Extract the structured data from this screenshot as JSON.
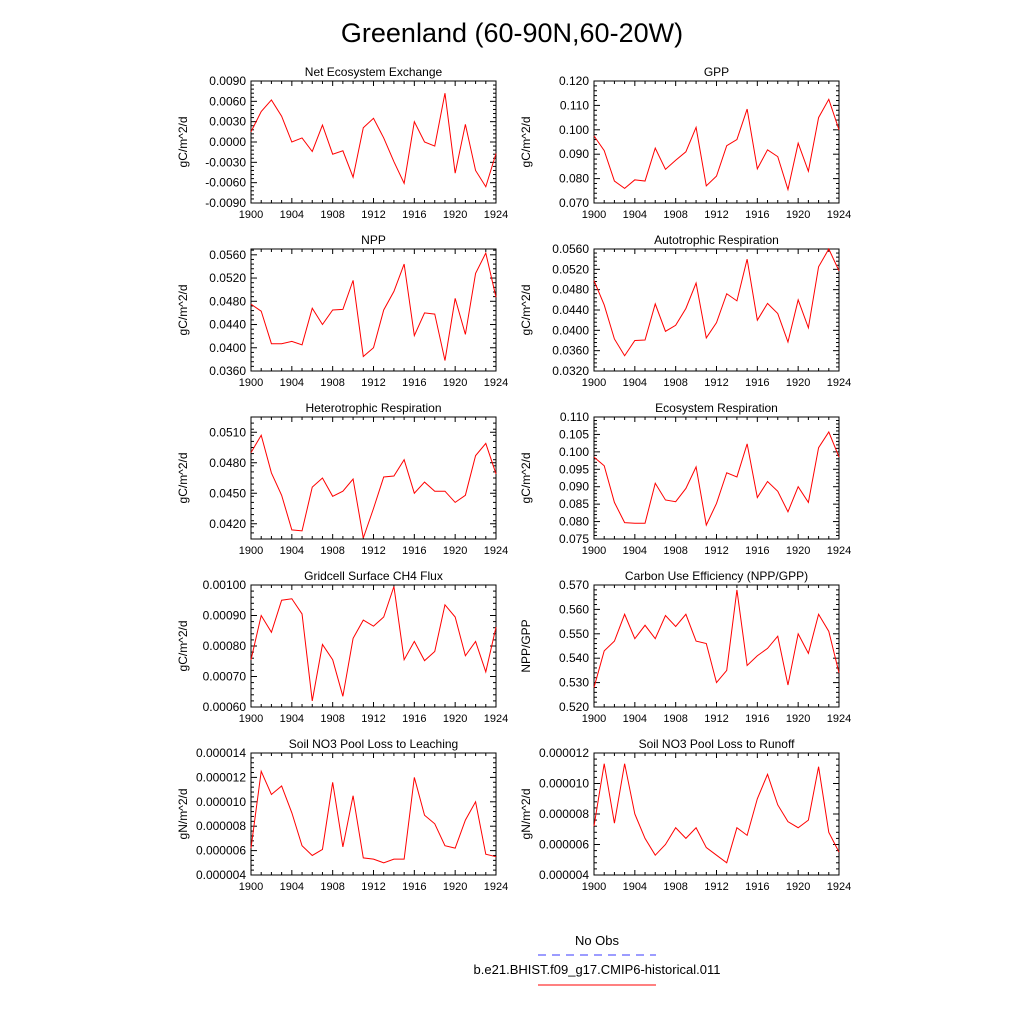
{
  "title": "Greenland (60-90N,60-20W)",
  "legend": {
    "items": [
      {
        "label": "No Obs",
        "color": "#3a3aff",
        "dashed": true
      },
      {
        "label": "b.e21.BHIST.f09_g17.CMIP6-historical.011",
        "color": "#ff0000",
        "dashed": false
      }
    ]
  },
  "line_color": "#ff0000",
  "chart_data": [
    {
      "type": "line",
      "title": "Net Ecosystem Exchange",
      "ylabel": "gC/m^2/d",
      "xlim": [
        1900,
        1924
      ],
      "ylim": [
        -0.009,
        0.009
      ],
      "xticks": [
        1900,
        1904,
        1908,
        1912,
        1916,
        1920,
        1924
      ],
      "xtick_labels": [
        "1900",
        "1904",
        "1908",
        "1912",
        "1916",
        "1920",
        "1924"
      ],
      "yticks": [
        -0.009,
        -0.006,
        -0.003,
        0.0,
        0.003,
        0.006,
        0.009
      ],
      "ytick_labels": [
        "-0.0090",
        "-0.0060",
        "-0.0030",
        "0.0000",
        "0.0030",
        "0.0060",
        "0.0090"
      ],
      "x": [
        1900,
        1901,
        1902,
        1903,
        1904,
        1905,
        1906,
        1907,
        1908,
        1909,
        1910,
        1911,
        1912,
        1913,
        1914,
        1915,
        1916,
        1917,
        1918,
        1919,
        1920,
        1921,
        1922,
        1923,
        1924
      ],
      "y": [
        0.0015,
        0.0045,
        0.0062,
        0.0038,
        0.0,
        0.0006,
        -0.0014,
        0.0025,
        -0.0018,
        -0.0013,
        -0.0052,
        0.0021,
        0.0035,
        0.0006,
        -0.0029,
        -0.0061,
        0.003,
        0.0,
        -0.0006,
        0.0072,
        -0.0046,
        0.0026,
        -0.0042,
        -0.0066,
        -0.0017
      ]
    },
    {
      "type": "line",
      "title": "GPP",
      "ylabel": "gC/m^2/d",
      "xlim": [
        1900,
        1924
      ],
      "ylim": [
        0.07,
        0.12
      ],
      "xticks": [
        1900,
        1904,
        1908,
        1912,
        1916,
        1920,
        1924
      ],
      "xtick_labels": [
        "1900",
        "1904",
        "1908",
        "1912",
        "1916",
        "1920",
        "1924"
      ],
      "yticks": [
        0.07,
        0.08,
        0.09,
        0.1,
        0.11,
        0.12
      ],
      "ytick_labels": [
        "0.070",
        "0.080",
        "0.090",
        "0.100",
        "0.110",
        "0.120"
      ],
      "x": [
        1900,
        1901,
        1902,
        1903,
        1904,
        1905,
        1906,
        1907,
        1908,
        1909,
        1910,
        1911,
        1912,
        1913,
        1914,
        1915,
        1916,
        1917,
        1918,
        1919,
        1920,
        1921,
        1922,
        1923,
        1924
      ],
      "y": [
        0.0975,
        0.0915,
        0.079,
        0.076,
        0.0795,
        0.079,
        0.0925,
        0.0838,
        0.0875,
        0.091,
        0.101,
        0.077,
        0.081,
        0.0935,
        0.096,
        0.1085,
        0.084,
        0.0918,
        0.089,
        0.0755,
        0.0945,
        0.083,
        0.105,
        0.1125,
        0.1
      ]
    },
    {
      "type": "line",
      "title": "NPP",
      "ylabel": "gC/m^2/d",
      "xlim": [
        1900,
        1924
      ],
      "ylim": [
        0.036,
        0.057
      ],
      "xticks": [
        1900,
        1904,
        1908,
        1912,
        1916,
        1920,
        1924
      ],
      "xtick_labels": [
        "1900",
        "1904",
        "1908",
        "1912",
        "1916",
        "1920",
        "1924"
      ],
      "yticks": [
        0.036,
        0.04,
        0.044,
        0.048,
        0.052,
        0.056
      ],
      "ytick_labels": [
        "0.0360",
        "0.0400",
        "0.0440",
        "0.0480",
        "0.0520",
        "0.0560"
      ],
      "x": [
        1900,
        1901,
        1902,
        1903,
        1904,
        1905,
        1906,
        1907,
        1908,
        1909,
        1910,
        1911,
        1912,
        1913,
        1914,
        1915,
        1916,
        1917,
        1918,
        1919,
        1920,
        1921,
        1922,
        1923,
        1924
      ],
      "y": [
        0.0475,
        0.0463,
        0.0407,
        0.0407,
        0.0411,
        0.0405,
        0.0468,
        0.044,
        0.0465,
        0.0466,
        0.0516,
        0.0385,
        0.04,
        0.0465,
        0.0497,
        0.0544,
        0.0421,
        0.046,
        0.0458,
        0.0378,
        0.0485,
        0.0423,
        0.0528,
        0.0563,
        0.0487
      ]
    },
    {
      "type": "line",
      "title": "Autotrophic Respiration",
      "ylabel": "gC/m^2/d",
      "xlim": [
        1900,
        1924
      ],
      "ylim": [
        0.032,
        0.056
      ],
      "xticks": [
        1900,
        1904,
        1908,
        1912,
        1916,
        1920,
        1924
      ],
      "xtick_labels": [
        "1900",
        "1904",
        "1908",
        "1912",
        "1916",
        "1920",
        "1924"
      ],
      "yticks": [
        0.032,
        0.036,
        0.04,
        0.044,
        0.048,
        0.052,
        0.056
      ],
      "ytick_labels": [
        "0.0320",
        "0.0360",
        "0.0400",
        "0.0440",
        "0.0480",
        "0.0520",
        "0.0560"
      ],
      "x": [
        1900,
        1901,
        1902,
        1903,
        1904,
        1905,
        1906,
        1907,
        1908,
        1909,
        1910,
        1911,
        1912,
        1913,
        1914,
        1915,
        1916,
        1917,
        1918,
        1919,
        1920,
        1921,
        1922,
        1923,
        1924
      ],
      "y": [
        0.0498,
        0.045,
        0.0383,
        0.035,
        0.038,
        0.0381,
        0.0452,
        0.0398,
        0.041,
        0.0443,
        0.0493,
        0.0385,
        0.0415,
        0.0472,
        0.0458,
        0.054,
        0.042,
        0.0453,
        0.0433,
        0.0377,
        0.046,
        0.0405,
        0.0525,
        0.056,
        0.0517
      ]
    },
    {
      "type": "line",
      "title": "Heterotrophic Respiration",
      "ylabel": "gC/m^2/d",
      "xlim": [
        1900,
        1924
      ],
      "ylim": [
        0.0405,
        0.0525
      ],
      "xticks": [
        1900,
        1904,
        1908,
        1912,
        1916,
        1920,
        1924
      ],
      "xtick_labels": [
        "1900",
        "1904",
        "1908",
        "1912",
        "1916",
        "1920",
        "1924"
      ],
      "yticks": [
        0.042,
        0.045,
        0.048,
        0.051
      ],
      "ytick_labels": [
        "0.0420",
        "0.0450",
        "0.0480",
        "0.0510"
      ],
      "x": [
        1900,
        1901,
        1902,
        1903,
        1904,
        1905,
        1906,
        1907,
        1908,
        1909,
        1910,
        1911,
        1912,
        1913,
        1914,
        1915,
        1916,
        1917,
        1918,
        1919,
        1920,
        1921,
        1922,
        1923,
        1924
      ],
      "y": [
        0.049,
        0.0507,
        0.047,
        0.0448,
        0.0414,
        0.0413,
        0.0456,
        0.0465,
        0.0447,
        0.0452,
        0.0464,
        0.0406,
        0.0435,
        0.0466,
        0.0467,
        0.0483,
        0.045,
        0.0461,
        0.0452,
        0.0452,
        0.0441,
        0.0448,
        0.0487,
        0.0499,
        0.0469
      ]
    },
    {
      "type": "line",
      "title": "Ecosystem Respiration",
      "ylabel": "gC/m^2/d",
      "xlim": [
        1900,
        1924
      ],
      "ylim": [
        0.075,
        0.11
      ],
      "xticks": [
        1900,
        1904,
        1908,
        1912,
        1916,
        1920,
        1924
      ],
      "xtick_labels": [
        "1900",
        "1904",
        "1908",
        "1912",
        "1916",
        "1920",
        "1924"
      ],
      "yticks": [
        0.075,
        0.08,
        0.085,
        0.09,
        0.095,
        0.1,
        0.105,
        0.11
      ],
      "ytick_labels": [
        "0.075",
        "0.080",
        "0.085",
        "0.090",
        "0.095",
        "0.100",
        "0.105",
        "0.110"
      ],
      "x": [
        1900,
        1901,
        1902,
        1903,
        1904,
        1905,
        1906,
        1907,
        1908,
        1909,
        1910,
        1911,
        1912,
        1913,
        1914,
        1915,
        1916,
        1917,
        1918,
        1919,
        1920,
        1921,
        1922,
        1923,
        1924
      ],
      "y": [
        0.0985,
        0.096,
        0.0855,
        0.0797,
        0.0795,
        0.0795,
        0.091,
        0.0862,
        0.0857,
        0.0895,
        0.0957,
        0.079,
        0.0852,
        0.094,
        0.0928,
        0.1023,
        0.0869,
        0.0915,
        0.0887,
        0.0828,
        0.09,
        0.0855,
        0.1012,
        0.1057,
        0.0985
      ]
    },
    {
      "type": "line",
      "title": "Gridcell Surface CH4 Flux",
      "ylabel": "gC/m^2/d",
      "xlim": [
        1900,
        1924
      ],
      "ylim": [
        0.0006,
        0.001
      ],
      "xticks": [
        1900,
        1904,
        1908,
        1912,
        1916,
        1920,
        1924
      ],
      "xtick_labels": [
        "1900",
        "1904",
        "1908",
        "1912",
        "1916",
        "1920",
        "1924"
      ],
      "yticks": [
        0.0006,
        0.0007,
        0.0008,
        0.0009,
        0.001
      ],
      "ytick_labels": [
        "0.00060",
        "0.00070",
        "0.00080",
        "0.00090",
        "0.00100"
      ],
      "x": [
        1900,
        1901,
        1902,
        1903,
        1904,
        1905,
        1906,
        1907,
        1908,
        1909,
        1910,
        1911,
        1912,
        1913,
        1914,
        1915,
        1916,
        1917,
        1918,
        1919,
        1920,
        1921,
        1922,
        1923,
        1924
      ],
      "y": [
        0.000755,
        0.0009,
        0.000845,
        0.00095,
        0.000955,
        0.000905,
        0.00062,
        0.000805,
        0.000755,
        0.000635,
        0.000825,
        0.000885,
        0.000865,
        0.000895,
        0.000995,
        0.000755,
        0.000815,
        0.000752,
        0.000782,
        0.000935,
        0.000895,
        0.000768,
        0.000815,
        0.000715,
        0.000862
      ]
    },
    {
      "type": "line",
      "title": "Carbon Use Efficiency (NPP/GPP)",
      "ylabel": "NPP/GPP",
      "xlim": [
        1900,
        1924
      ],
      "ylim": [
        0.52,
        0.57
      ],
      "xticks": [
        1900,
        1904,
        1908,
        1912,
        1916,
        1920,
        1924
      ],
      "xtick_labels": [
        "1900",
        "1904",
        "1908",
        "1912",
        "1916",
        "1920",
        "1924"
      ],
      "yticks": [
        0.52,
        0.53,
        0.54,
        0.55,
        0.56,
        0.57
      ],
      "ytick_labels": [
        "0.520",
        "0.530",
        "0.540",
        "0.550",
        "0.560",
        "0.570"
      ],
      "x": [
        1900,
        1901,
        1902,
        1903,
        1904,
        1905,
        1906,
        1907,
        1908,
        1909,
        1910,
        1911,
        1912,
        1913,
        1914,
        1915,
        1916,
        1917,
        1918,
        1919,
        1920,
        1921,
        1922,
        1923,
        1924
      ],
      "y": [
        0.528,
        0.543,
        0.547,
        0.558,
        0.548,
        0.5535,
        0.548,
        0.5575,
        0.553,
        0.558,
        0.547,
        0.546,
        0.53,
        0.535,
        0.568,
        0.537,
        0.541,
        0.544,
        0.549,
        0.529,
        0.55,
        0.542,
        0.558,
        0.551,
        0.534
      ]
    },
    {
      "type": "line",
      "title": "Soil NO3 Pool Loss to Leaching",
      "ylabel": "gN/m^2/d",
      "xlim": [
        1900,
        1924
      ],
      "ylim": [
        4e-06,
        1.4e-05
      ],
      "xticks": [
        1900,
        1904,
        1908,
        1912,
        1916,
        1920,
        1924
      ],
      "xtick_labels": [
        "1900",
        "1904",
        "1908",
        "1912",
        "1916",
        "1920",
        "1924"
      ],
      "yticks": [
        4e-06,
        6e-06,
        8e-06,
        1e-05,
        1.2e-05,
        1.4e-05
      ],
      "ytick_labels": [
        "0.000004",
        "0.000006",
        "0.000008",
        "0.000010",
        "0.000012",
        "0.000014"
      ],
      "x": [
        1900,
        1901,
        1902,
        1903,
        1904,
        1905,
        1906,
        1907,
        1908,
        1909,
        1910,
        1911,
        1912,
        1913,
        1914,
        1915,
        1916,
        1917,
        1918,
        1919,
        1920,
        1921,
        1922,
        1923,
        1924
      ],
      "y": [
        6.2e-06,
        1.25e-05,
        1.06e-05,
        1.13e-05,
        9.1e-06,
        6.4e-06,
        5.6e-06,
        6.1e-06,
        1.16e-05,
        6.3e-06,
        1.05e-05,
        5.4e-06,
        5.3e-06,
        5e-06,
        5.3e-06,
        5.3e-06,
        1.2e-05,
        8.9e-06,
        8.2e-06,
        6.4e-06,
        6.2e-06,
        8.5e-06,
        1e-05,
        5.7e-06,
        5.5e-06
      ]
    },
    {
      "type": "line",
      "title": "Soil NO3 Pool Loss to Runoff",
      "ylabel": "gN/m^2/d",
      "xlim": [
        1900,
        1924
      ],
      "ylim": [
        4e-06,
        1.2e-05
      ],
      "xticks": [
        1900,
        1904,
        1908,
        1912,
        1916,
        1920,
        1924
      ],
      "xtick_labels": [
        "1900",
        "1904",
        "1908",
        "1912",
        "1916",
        "1920",
        "1924"
      ],
      "yticks": [
        4e-06,
        6e-06,
        8e-06,
        1e-05,
        1.2e-05
      ],
      "ytick_labels": [
        "0.000004",
        "0.000006",
        "0.000008",
        "0.000010",
        "0.000012"
      ],
      "x": [
        1900,
        1901,
        1902,
        1903,
        1904,
        1905,
        1906,
        1907,
        1908,
        1909,
        1910,
        1911,
        1912,
        1913,
        1914,
        1915,
        1916,
        1917,
        1918,
        1919,
        1920,
        1921,
        1922,
        1923,
        1924
      ],
      "y": [
        7.2e-06,
        1.13e-05,
        7.4e-06,
        1.13e-05,
        8e-06,
        6.4e-06,
        5.3e-06,
        6e-06,
        7.1e-06,
        6.4e-06,
        7.1e-06,
        5.8e-06,
        5.3e-06,
        4.8e-06,
        7.1e-06,
        6.6e-06,
        9e-06,
        1.06e-05,
        8.6e-06,
        7.5e-06,
        7.1e-06,
        7.6e-06,
        1.11e-05,
        6.8e-06,
        5.5e-06
      ]
    }
  ]
}
